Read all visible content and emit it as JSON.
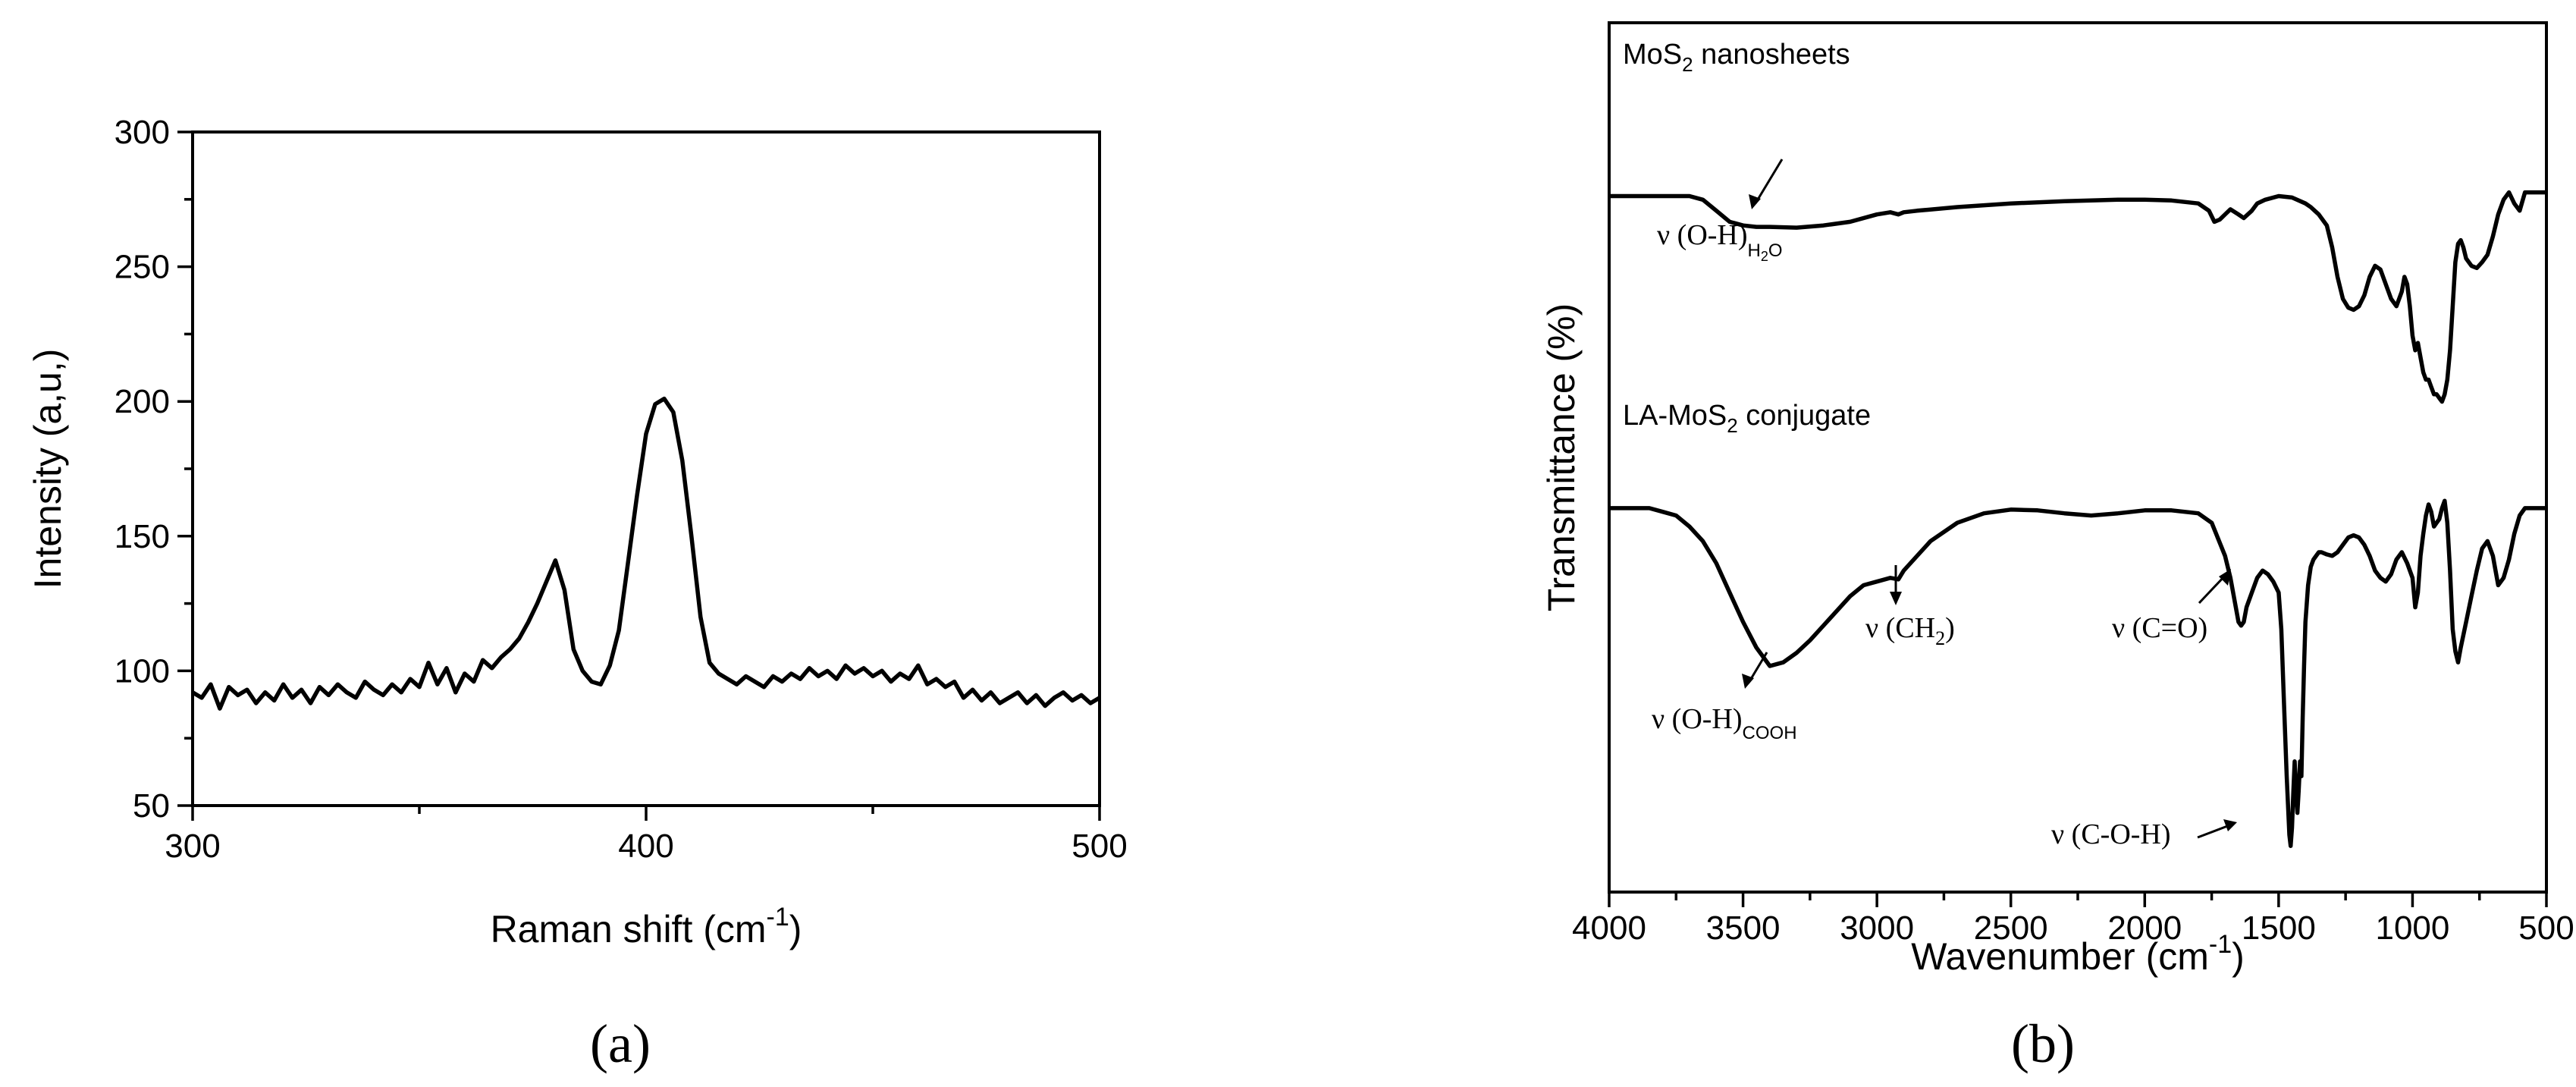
{
  "figure": {
    "panel_a_label": "(a)",
    "panel_b_label": "(b)"
  },
  "chart_data": [
    {
      "type": "line",
      "panel": "a",
      "xlabel": "Raman shift (cm",
      "xlabel_sup": "-1",
      "xlabel_tail": ")",
      "ylabel": "Intensity  (a,u,)",
      "xlim": [
        300,
        500
      ],
      "ylim": [
        50,
        300
      ],
      "xticks": [
        300,
        400,
        500
      ],
      "yticks": [
        50,
        100,
        150,
        200,
        250,
        300
      ],
      "grid": false,
      "series": [
        {
          "x": [
            300,
            302,
            304,
            306,
            308,
            310,
            312,
            314,
            316,
            318,
            320,
            322,
            324,
            326,
            328,
            330,
            332,
            334,
            336,
            338,
            340,
            342,
            344,
            346,
            348,
            350,
            352,
            354,
            356,
            358,
            360,
            362,
            364,
            366,
            368,
            370,
            372,
            374,
            376,
            378,
            380,
            382,
            384,
            386,
            388,
            390,
            392,
            394,
            396,
            398,
            400,
            402,
            404,
            406,
            408,
            410,
            412,
            414,
            416,
            418,
            420,
            422,
            424,
            426,
            428,
            430,
            432,
            434,
            436,
            438,
            440,
            442,
            444,
            446,
            448,
            450,
            452,
            454,
            456,
            458,
            460,
            462,
            464,
            466,
            468,
            470,
            472,
            474,
            476,
            478,
            480,
            482,
            484,
            486,
            488,
            490,
            492,
            494,
            496,
            498,
            500
          ],
          "y": [
            92,
            90,
            95,
            86,
            94,
            91,
            93,
            88,
            92,
            89,
            95,
            90,
            93,
            88,
            94,
            91,
            95,
            92,
            90,
            96,
            93,
            91,
            95,
            92,
            97,
            94,
            103,
            95,
            101,
            92,
            99,
            96,
            104,
            101,
            105,
            108,
            112,
            118,
            125,
            133,
            141,
            130,
            108,
            100,
            96,
            95,
            102,
            115,
            140,
            165,
            188,
            199,
            201,
            196,
            178,
            150,
            120,
            103,
            99,
            97,
            95,
            98,
            96,
            94,
            98,
            96,
            99,
            97,
            101,
            98,
            100,
            97,
            102,
            99,
            101,
            98,
            100,
            96,
            99,
            97,
            102,
            95,
            97,
            94,
            96,
            90,
            93,
            89,
            92,
            88,
            90,
            92,
            88,
            91,
            87,
            90,
            92,
            89,
            91,
            88,
            90
          ]
        }
      ]
    },
    {
      "type": "line",
      "panel": "b",
      "xlabel": "Wavenumber (cm",
      "xlabel_sup": "-1",
      "xlabel_tail": ")",
      "ylabel": "Transmittance (%)",
      "xlim": [
        4000,
        500
      ],
      "ylim": [
        0,
        100
      ],
      "xticks": [
        4000,
        3500,
        3000,
        2500,
        2000,
        1500,
        1000,
        500
      ],
      "grid": false,
      "series": [
        {
          "name_main": "MoS",
          "name_sub": "2",
          "name_tail": " nanosheets",
          "x": [
            4000,
            3800,
            3700,
            3650,
            3600,
            3550,
            3500,
            3450,
            3400,
            3300,
            3200,
            3100,
            3000,
            2950,
            2920,
            2900,
            2850,
            2700,
            2500,
            2300,
            2100,
            2000,
            1900,
            1800,
            1760,
            1740,
            1720,
            1700,
            1680,
            1650,
            1630,
            1600,
            1580,
            1550,
            1500,
            1450,
            1400,
            1380,
            1350,
            1320,
            1300,
            1280,
            1260,
            1240,
            1220,
            1200,
            1180,
            1160,
            1140,
            1120,
            1100,
            1080,
            1060,
            1040,
            1030,
            1020,
            1010,
            1000,
            990,
            980,
            970,
            960,
            950,
            940,
            930,
            920,
            910,
            900,
            890,
            880,
            870,
            860,
            850,
            840,
            830,
            820,
            810,
            800,
            780,
            760,
            740,
            720,
            700,
            680,
            660,
            640,
            620,
            600,
            580,
            550,
            500
          ],
          "y": [
            89,
            89,
            89,
            88.5,
            87,
            85.5,
            85,
            84.8,
            84.8,
            84.7,
            85,
            85.5,
            86.5,
            86.8,
            86.5,
            86.8,
            87,
            87.5,
            88,
            88.3,
            88.5,
            88.5,
            88.4,
            88,
            87,
            85.5,
            85.8,
            86.5,
            87.2,
            86.5,
            86,
            87,
            88,
            88.5,
            89,
            88.8,
            88,
            87.5,
            86.5,
            85,
            82,
            78,
            75,
            73.8,
            73.5,
            74,
            75.5,
            78,
            79.5,
            79,
            77,
            75,
            74,
            76,
            78,
            77,
            74,
            70,
            68,
            69,
            67,
            65,
            64,
            64,
            63,
            62,
            62,
            61.5,
            61,
            62,
            64,
            68,
            74,
            80,
            82.5,
            83,
            82,
            80.5,
            79.5,
            79.2,
            80,
            81,
            83.5,
            86.5,
            88.5,
            89.5,
            88,
            87,
            89.5,
            89.5,
            89.5
          ]
        },
        {
          "name_main": "LA-MoS",
          "name_sub": "2",
          "name_tail": " conjugate",
          "x": [
            4000,
            3850,
            3800,
            3750,
            3700,
            3650,
            3600,
            3550,
            3500,
            3450,
            3400,
            3350,
            3300,
            3250,
            3200,
            3150,
            3100,
            3050,
            3000,
            2950,
            2920,
            2900,
            2850,
            2800,
            2700,
            2600,
            2500,
            2400,
            2300,
            2200,
            2100,
            2000,
            1900,
            1800,
            1750,
            1700,
            1680,
            1660,
            1650,
            1640,
            1630,
            1620,
            1600,
            1580,
            1560,
            1540,
            1520,
            1500,
            1490,
            1480,
            1470,
            1460,
            1455,
            1450,
            1445,
            1440,
            1435,
            1430,
            1425,
            1420,
            1415,
            1410,
            1405,
            1400,
            1390,
            1380,
            1370,
            1360,
            1350,
            1340,
            1320,
            1300,
            1280,
            1260,
            1240,
            1220,
            1200,
            1180,
            1160,
            1140,
            1120,
            1100,
            1080,
            1060,
            1040,
            1020,
            1000,
            990,
            980,
            970,
            960,
            950,
            940,
            930,
            920,
            910,
            900,
            890,
            880,
            870,
            860,
            850,
            840,
            830,
            820,
            800,
            780,
            760,
            740,
            720,
            700,
            690,
            680,
            660,
            640,
            620,
            600,
            580,
            550,
            500
          ],
          "y": [
            46.5,
            46.5,
            46,
            45.5,
            44,
            42,
            39,
            35,
            31,
            27.5,
            25,
            25.5,
            26.8,
            28.5,
            30.5,
            32.5,
            34.5,
            36,
            36.5,
            37,
            36.8,
            38,
            40,
            42,
            44.5,
            45.8,
            46.3,
            46.2,
            45.8,
            45.5,
            45.8,
            46.2,
            46.2,
            45.8,
            44.5,
            40,
            37,
            33,
            31,
            30.5,
            31,
            33,
            35,
            37,
            38,
            37.5,
            36.5,
            35,
            30,
            20,
            10,
            2,
            0.5,
            3,
            8,
            12,
            8,
            5,
            8,
            12,
            10,
            18,
            25,
            31,
            36,
            38.5,
            39.5,
            40,
            40.5,
            40.5,
            40.2,
            40,
            40.5,
            41.5,
            42.5,
            42.8,
            42.5,
            41.5,
            40,
            38,
            37,
            36.5,
            37.5,
            39.5,
            40.5,
            39,
            37,
            33,
            35,
            40,
            43,
            45.5,
            47,
            46,
            44,
            44.5,
            45,
            46.5,
            47.5,
            44.5,
            38,
            30,
            27,
            25.5,
            27.5,
            31,
            34.5,
            38,
            41,
            42,
            40,
            38,
            36,
            37,
            39.5,
            43,
            45.5,
            46.5,
            46.5,
            46.5
          ]
        }
      ]
    }
  ],
  "annotations_a": [],
  "annotations_b": {
    "oh_h2o": {
      "main": "ν (O-H)",
      "sub": "H",
      "sub2": "2",
      "sub3": "O"
    },
    "oh_cooh": {
      "main": "ν (O-H)",
      "sub": "COOH"
    },
    "ch2": {
      "main": "ν (CH",
      "sub": "2",
      "tail": ")"
    },
    "co": {
      "main": "ν (C=O)"
    },
    "coh": {
      "main": "ν (C-O-H)"
    }
  }
}
